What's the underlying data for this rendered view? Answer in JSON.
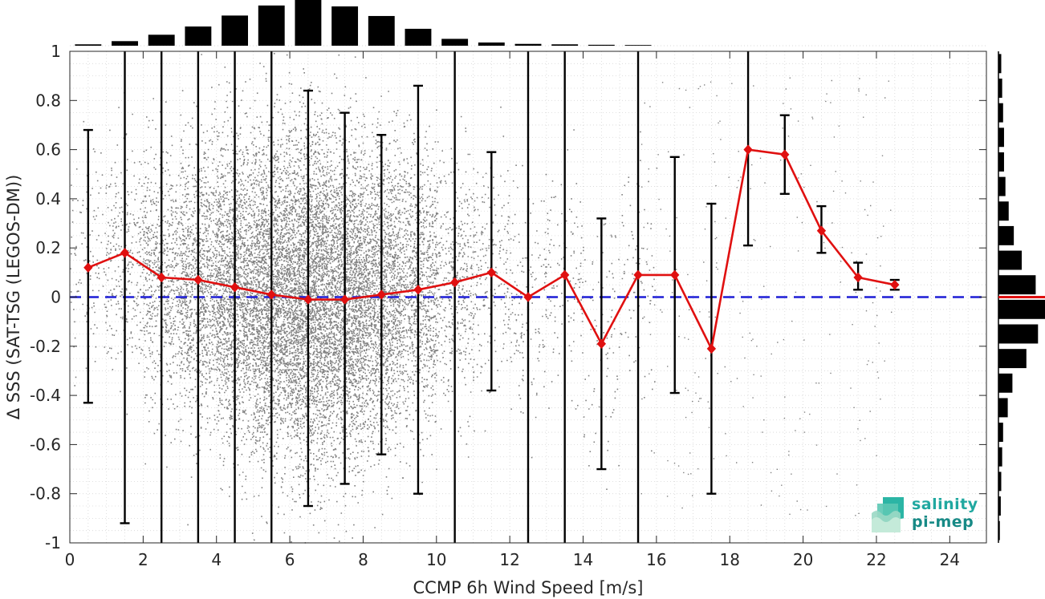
{
  "chart_data": {
    "type": "scatter",
    "xlabel": "CCMP 6h Wind Speed [m/s]",
    "ylabel": "Δ SSS (SAT-TSG (LEGOS-DM))",
    "xlim": [
      0,
      25
    ],
    "ylim": [
      -1,
      1
    ],
    "x_ticks": [
      "0",
      "2",
      "4",
      "6",
      "8",
      "10",
      "12",
      "14",
      "16",
      "18",
      "20",
      "22",
      "24"
    ],
    "y_ticks": [
      "1",
      "0.8",
      "0.6",
      "0.4",
      "0.2",
      "0",
      "-0.2",
      "-0.4",
      "-0.6",
      "-0.8",
      "-1"
    ],
    "grid": true,
    "reference_line": {
      "y": 0,
      "color": "#1f1fd6",
      "style": "dashed"
    },
    "scatter_color": "#808080",
    "series": [
      {
        "type": "line-with-errorbars",
        "color": "#e01010",
        "x": [
          0.5,
          1.5,
          2.5,
          3.5,
          4.5,
          5.5,
          6.5,
          7.5,
          8.5,
          9.5,
          10.5,
          11.5,
          12.5,
          13.5,
          14.5,
          15.5,
          16.5,
          17.5,
          18.5,
          19.5,
          20.5,
          21.5,
          22.5
        ],
        "y": [
          0.12,
          0.18,
          0.08,
          0.07,
          0.04,
          0.01,
          -0.01,
          -0.01,
          0.01,
          0.03,
          0.06,
          0.1,
          0.0,
          0.09,
          -0.19,
          0.09,
          0.09,
          -0.21,
          0.6,
          0.58,
          0.27,
          0.08,
          0.05
        ],
        "err_low": [
          -0.43,
          -0.92,
          -1.0,
          -1.0,
          -1.0,
          -1.0,
          -0.85,
          -0.76,
          -0.64,
          -0.8,
          -1.0,
          -0.38,
          -1.0,
          -1.0,
          -0.7,
          -1.0,
          -0.39,
          -0.8,
          0.21,
          0.42,
          0.18,
          0.03,
          0.03
        ],
        "err_high": [
          0.68,
          1.0,
          1.0,
          1.0,
          1.0,
          1.0,
          0.84,
          0.75,
          0.66,
          0.86,
          1.0,
          0.59,
          1.0,
          1.0,
          0.32,
          1.0,
          0.57,
          0.38,
          1.0,
          0.74,
          0.37,
          0.14,
          0.07
        ]
      }
    ],
    "top_histogram": {
      "bin_centers": [
        0.5,
        1.5,
        2.5,
        3.5,
        4.5,
        5.5,
        6.5,
        7.5,
        8.5,
        9.5,
        10.5,
        11.5,
        12.5,
        13.5,
        14.5,
        15.5
      ],
      "relative_counts": [
        0.03,
        0.1,
        0.24,
        0.42,
        0.66,
        0.88,
        1.0,
        0.86,
        0.65,
        0.37,
        0.15,
        0.07,
        0.04,
        0.03,
        0.02,
        0.015
      ]
    },
    "right_histogram": {
      "bin_centers": [
        0.95,
        0.85,
        0.75,
        0.65,
        0.55,
        0.45,
        0.35,
        0.25,
        0.15,
        0.05,
        -0.05,
        -0.15,
        -0.25,
        -0.35,
        -0.45,
        -0.55,
        -0.65,
        -0.75,
        -0.85,
        -0.95
      ],
      "relative_counts": [
        0.06,
        0.08,
        0.1,
        0.12,
        0.12,
        0.15,
        0.22,
        0.33,
        0.5,
        0.8,
        1.0,
        0.85,
        0.6,
        0.3,
        0.2,
        0.1,
        0.08,
        0.06,
        0.05,
        0.03
      ],
      "zero_line_color": "#e01010"
    }
  },
  "logo": {
    "line1": "salinity",
    "line2": "pi-mep"
  }
}
